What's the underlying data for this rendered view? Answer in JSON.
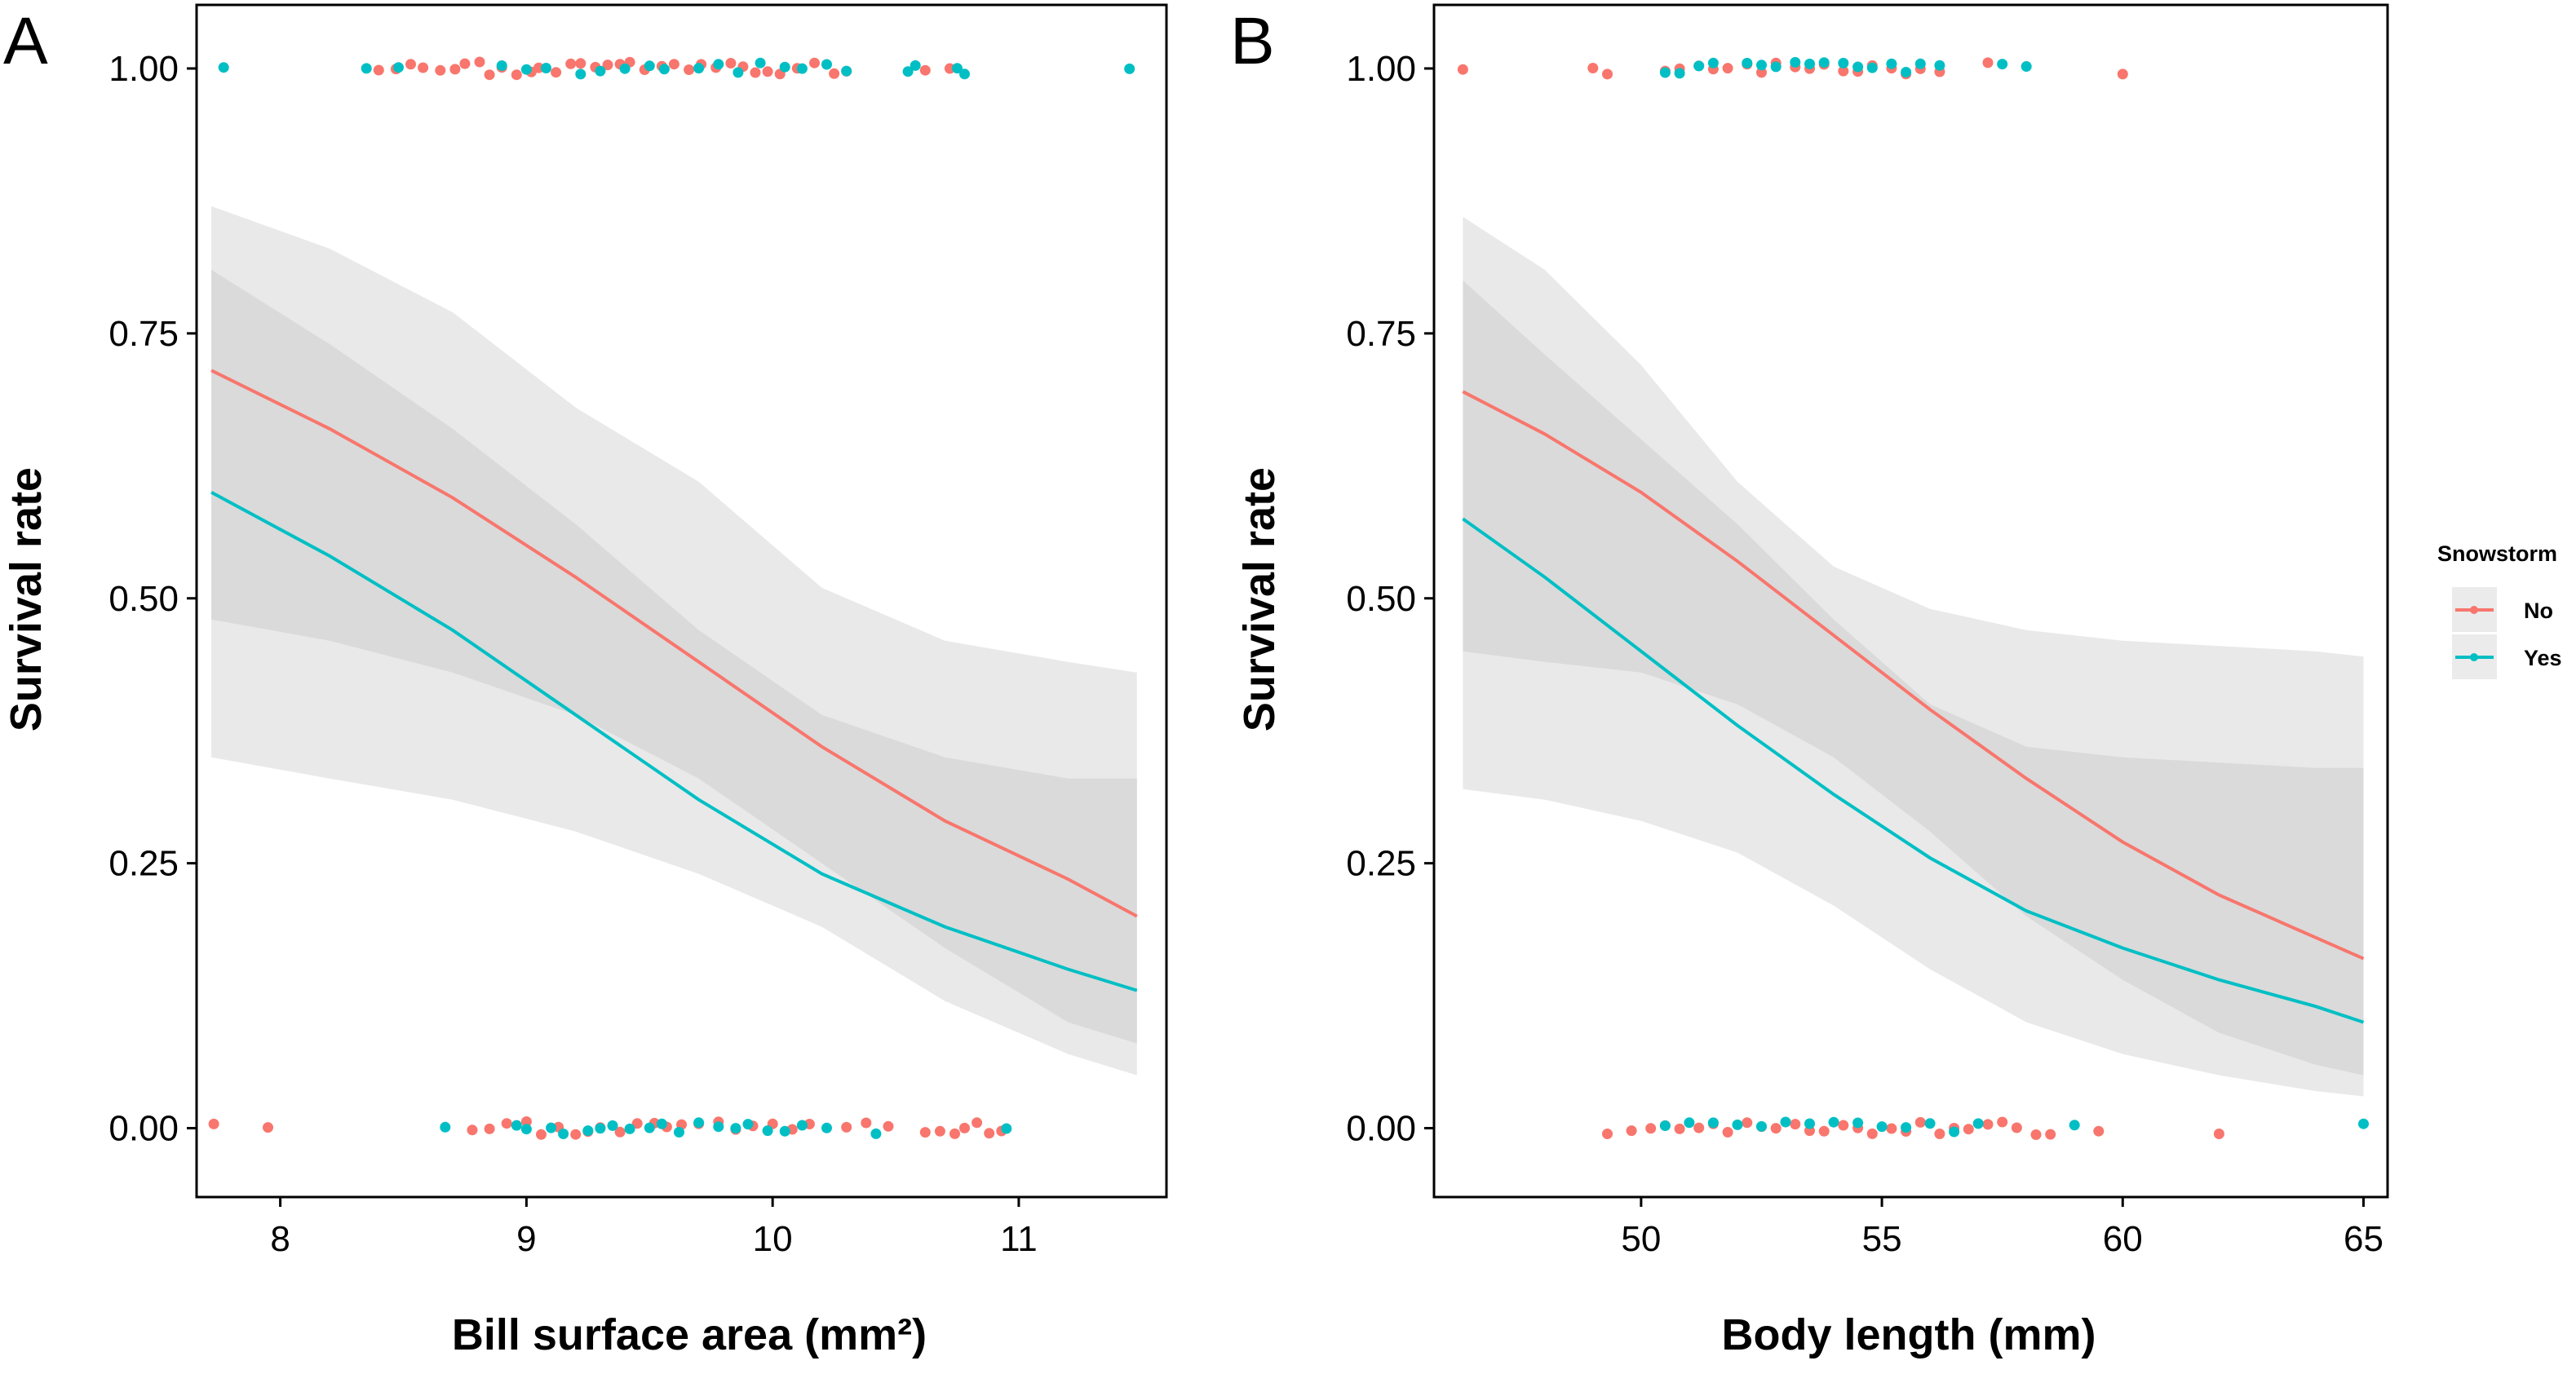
{
  "legend": {
    "title": "Snowstorm",
    "entries": [
      {
        "label": "No",
        "color": "#F8766D"
      },
      {
        "label": "Yes",
        "color": "#00BFC4"
      }
    ]
  },
  "chart_data": [
    {
      "panel": "A",
      "type": "line",
      "xlabel": "Bill surface area (mm²)",
      "ylabel": "Survival rate",
      "xlim": [
        7.66,
        11.6
      ],
      "ylim": [
        -0.065,
        1.06
      ],
      "xticks": [
        8,
        9,
        10,
        11
      ],
      "yticks": [
        0.0,
        0.25,
        0.5,
        0.75,
        1.0
      ],
      "ytick_labels": [
        "0.00",
        "0.25",
        "0.50",
        "0.75",
        "1.00"
      ],
      "grid": false,
      "series": [
        {
          "name": "No",
          "color": "#F8766D",
          "x": [
            7.72,
            8.2,
            8.7,
            9.2,
            9.7,
            10.2,
            10.7,
            11.2,
            11.48
          ],
          "y": [
            0.715,
            0.66,
            0.595,
            0.52,
            0.44,
            0.36,
            0.29,
            0.235,
            0.2
          ],
          "ci_lower": [
            0.35,
            0.33,
            0.31,
            0.28,
            0.24,
            0.19,
            0.12,
            0.07,
            0.05
          ],
          "ci_upper": [
            0.87,
            0.83,
            0.77,
            0.68,
            0.61,
            0.51,
            0.46,
            0.44,
            0.43
          ]
        },
        {
          "name": "Yes",
          "color": "#00BFC4",
          "x": [
            7.72,
            8.2,
            8.7,
            9.2,
            9.7,
            10.2,
            10.7,
            11.2,
            11.48
          ],
          "y": [
            0.6,
            0.54,
            0.47,
            0.39,
            0.31,
            0.24,
            0.19,
            0.15,
            0.13
          ],
          "ci_lower": [
            0.48,
            0.46,
            0.43,
            0.39,
            0.33,
            0.25,
            0.17,
            0.1,
            0.08
          ],
          "ci_upper": [
            0.81,
            0.74,
            0.66,
            0.57,
            0.47,
            0.39,
            0.35,
            0.33,
            0.33
          ]
        }
      ],
      "points": {
        "No": {
          "top": [
            8.4,
            8.47,
            8.53,
            8.58,
            8.65,
            8.71,
            8.75,
            8.81,
            8.85,
            8.9,
            8.96,
            9.02,
            9.05,
            9.12,
            9.18,
            9.22,
            9.28,
            9.33,
            9.38,
            9.42,
            9.48,
            9.55,
            9.6,
            9.66,
            9.71,
            9.77,
            9.83,
            9.88,
            9.93,
            9.98,
            10.03,
            10.1,
            10.17,
            10.25,
            10.3,
            10.62,
            10.72
          ],
          "bottom": [
            7.73,
            7.95,
            8.78,
            8.85,
            8.92,
            9.0,
            9.06,
            9.13,
            9.2,
            9.25,
            9.3,
            9.38,
            9.45,
            9.52,
            9.57,
            9.63,
            9.7,
            9.78,
            9.85,
            9.92,
            10.0,
            10.08,
            10.15,
            10.3,
            10.38,
            10.47,
            10.62,
            10.68,
            10.74,
            10.78,
            10.83,
            10.88,
            10.93
          ]
        },
        "Yes": {
          "top": [
            7.77,
            8.35,
            8.48,
            8.9,
            9.0,
            9.08,
            9.22,
            9.3,
            9.4,
            9.5,
            9.56,
            9.7,
            9.78,
            9.86,
            9.95,
            10.05,
            10.12,
            10.22,
            10.3,
            10.55,
            10.58,
            10.75,
            10.78,
            11.45
          ],
          "bottom": [
            8.67,
            8.96,
            9.0,
            9.1,
            9.15,
            9.25,
            9.3,
            9.35,
            9.42,
            9.5,
            9.55,
            9.62,
            9.7,
            9.78,
            9.85,
            9.9,
            9.98,
            10.05,
            10.12,
            10.22,
            10.42,
            10.95
          ]
        }
      }
    },
    {
      "panel": "B",
      "type": "line",
      "xlabel": "Body length (mm)",
      "ylabel": "Survival rate",
      "xlim": [
        45.7,
        65.5
      ],
      "ylim": [
        -0.065,
        1.06
      ],
      "xticks": [
        50,
        55,
        60,
        65
      ],
      "yticks": [
        0.0,
        0.25,
        0.5,
        0.75,
        1.0
      ],
      "ytick_labels": [
        "0.00",
        "0.25",
        "0.50",
        "0.75",
        "1.00"
      ],
      "grid": false,
      "series": [
        {
          "name": "No",
          "color": "#F8766D",
          "x": [
            46.3,
            48,
            50,
            52,
            54,
            56,
            58,
            60,
            62,
            64,
            65
          ],
          "y": [
            0.695,
            0.655,
            0.6,
            0.535,
            0.465,
            0.395,
            0.33,
            0.27,
            0.22,
            0.18,
            0.16
          ],
          "ci_lower": [
            0.32,
            0.31,
            0.29,
            0.26,
            0.21,
            0.15,
            0.1,
            0.07,
            0.05,
            0.035,
            0.03
          ],
          "ci_upper": [
            0.86,
            0.81,
            0.72,
            0.61,
            0.53,
            0.49,
            0.47,
            0.46,
            0.455,
            0.45,
            0.445
          ]
        },
        {
          "name": "Yes",
          "color": "#00BFC4",
          "x": [
            46.3,
            48,
            50,
            52,
            54,
            56,
            58,
            60,
            62,
            64,
            65
          ],
          "y": [
            0.575,
            0.52,
            0.45,
            0.38,
            0.315,
            0.255,
            0.205,
            0.17,
            0.14,
            0.115,
            0.1
          ],
          "ci_lower": [
            0.45,
            0.44,
            0.43,
            0.4,
            0.35,
            0.28,
            0.2,
            0.14,
            0.09,
            0.06,
            0.05
          ],
          "ci_upper": [
            0.8,
            0.73,
            0.65,
            0.57,
            0.48,
            0.4,
            0.36,
            0.35,
            0.345,
            0.34,
            0.34
          ]
        }
      ],
      "points": {
        "No": {
          "top": [
            46.3,
            49.0,
            49.3,
            50.5,
            50.8,
            51.2,
            51.5,
            51.8,
            52.2,
            52.5,
            52.8,
            53.2,
            53.5,
            53.8,
            54.2,
            54.5,
            54.8,
            55.2,
            55.5,
            55.8,
            56.2,
            57.2,
            60.0
          ],
          "bottom": [
            49.3,
            49.8,
            50.2,
            50.5,
            50.8,
            51.2,
            51.5,
            51.8,
            52.2,
            52.5,
            52.8,
            53.2,
            53.5,
            53.8,
            54.2,
            54.5,
            54.8,
            55.2,
            55.5,
            55.8,
            56.2,
            56.5,
            56.8,
            57.2,
            57.5,
            57.8,
            58.2,
            58.5,
            59.5,
            62.0
          ]
        },
        "Yes": {
          "top": [
            50.5,
            50.8,
            51.2,
            51.5,
            52.2,
            52.5,
            52.8,
            53.2,
            53.5,
            53.8,
            54.2,
            54.5,
            54.8,
            55.2,
            55.5,
            55.8,
            56.2,
            57.5,
            58.0
          ],
          "bottom": [
            50.5,
            51.0,
            51.5,
            52.0,
            52.5,
            53.0,
            53.5,
            54.0,
            54.5,
            55.0,
            55.5,
            56.0,
            56.5,
            57.0,
            59.0,
            65.0
          ]
        }
      }
    }
  ]
}
